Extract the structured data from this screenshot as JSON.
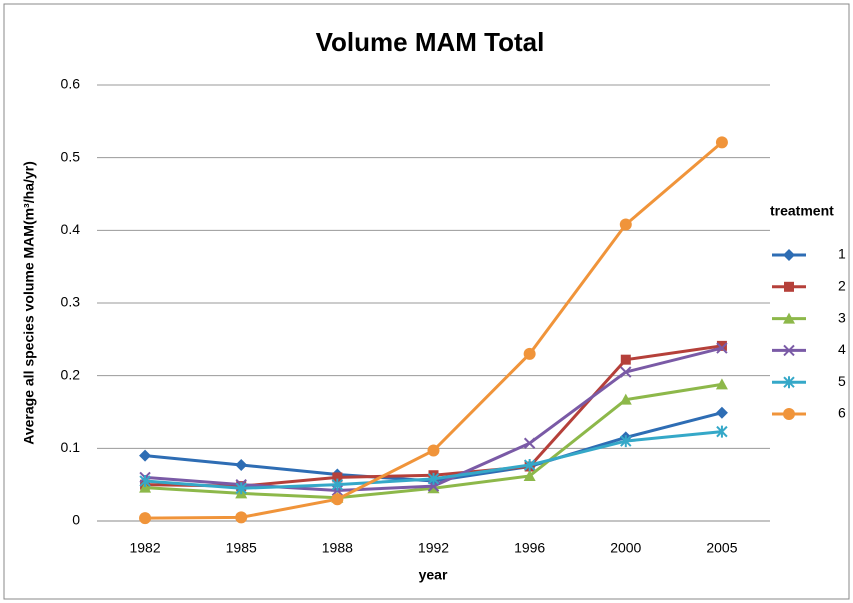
{
  "chart_data": {
    "type": "line",
    "title": "Volume MAM Total",
    "x_label": "year",
    "y_label": "Average all species volume MAM(m³/ha/yr)",
    "legend_title": "treatment",
    "legend": "right",
    "grid": true,
    "categories": [
      "1982",
      "1985",
      "1988",
      "1992",
      "1996",
      "2000",
      "2005"
    ],
    "ylim": [
      0,
      0.6
    ],
    "yticks": [
      0,
      0.1,
      0.2,
      0.3,
      0.4,
      0.5,
      0.6
    ],
    "series": [
      {
        "name": "1",
        "color": "#2e6db4",
        "marker": "diamond",
        "values": [
          0.09,
          0.077,
          0.064,
          0.055,
          0.075,
          0.115,
          0.149
        ]
      },
      {
        "name": "2",
        "color": "#b5403a",
        "marker": "square",
        "values": [
          0.05,
          0.048,
          0.06,
          0.063,
          0.075,
          0.222,
          0.241
        ]
      },
      {
        "name": "3",
        "color": "#8db84a",
        "marker": "triangle",
        "values": [
          0.046,
          0.038,
          0.032,
          0.045,
          0.062,
          0.167,
          0.188
        ]
      },
      {
        "name": "4",
        "color": "#7a5aa6",
        "marker": "x",
        "values": [
          0.06,
          0.05,
          0.042,
          0.048,
          0.107,
          0.205,
          0.238
        ]
      },
      {
        "name": "5",
        "color": "#35a8c8",
        "marker": "star",
        "values": [
          0.055,
          0.045,
          0.05,
          0.058,
          0.077,
          0.11,
          0.123
        ]
      },
      {
        "name": "6",
        "color": "#f0943a",
        "marker": "circle",
        "values": [
          0.004,
          0.005,
          0.03,
          0.097,
          0.23,
          0.408,
          0.521
        ]
      }
    ]
  }
}
